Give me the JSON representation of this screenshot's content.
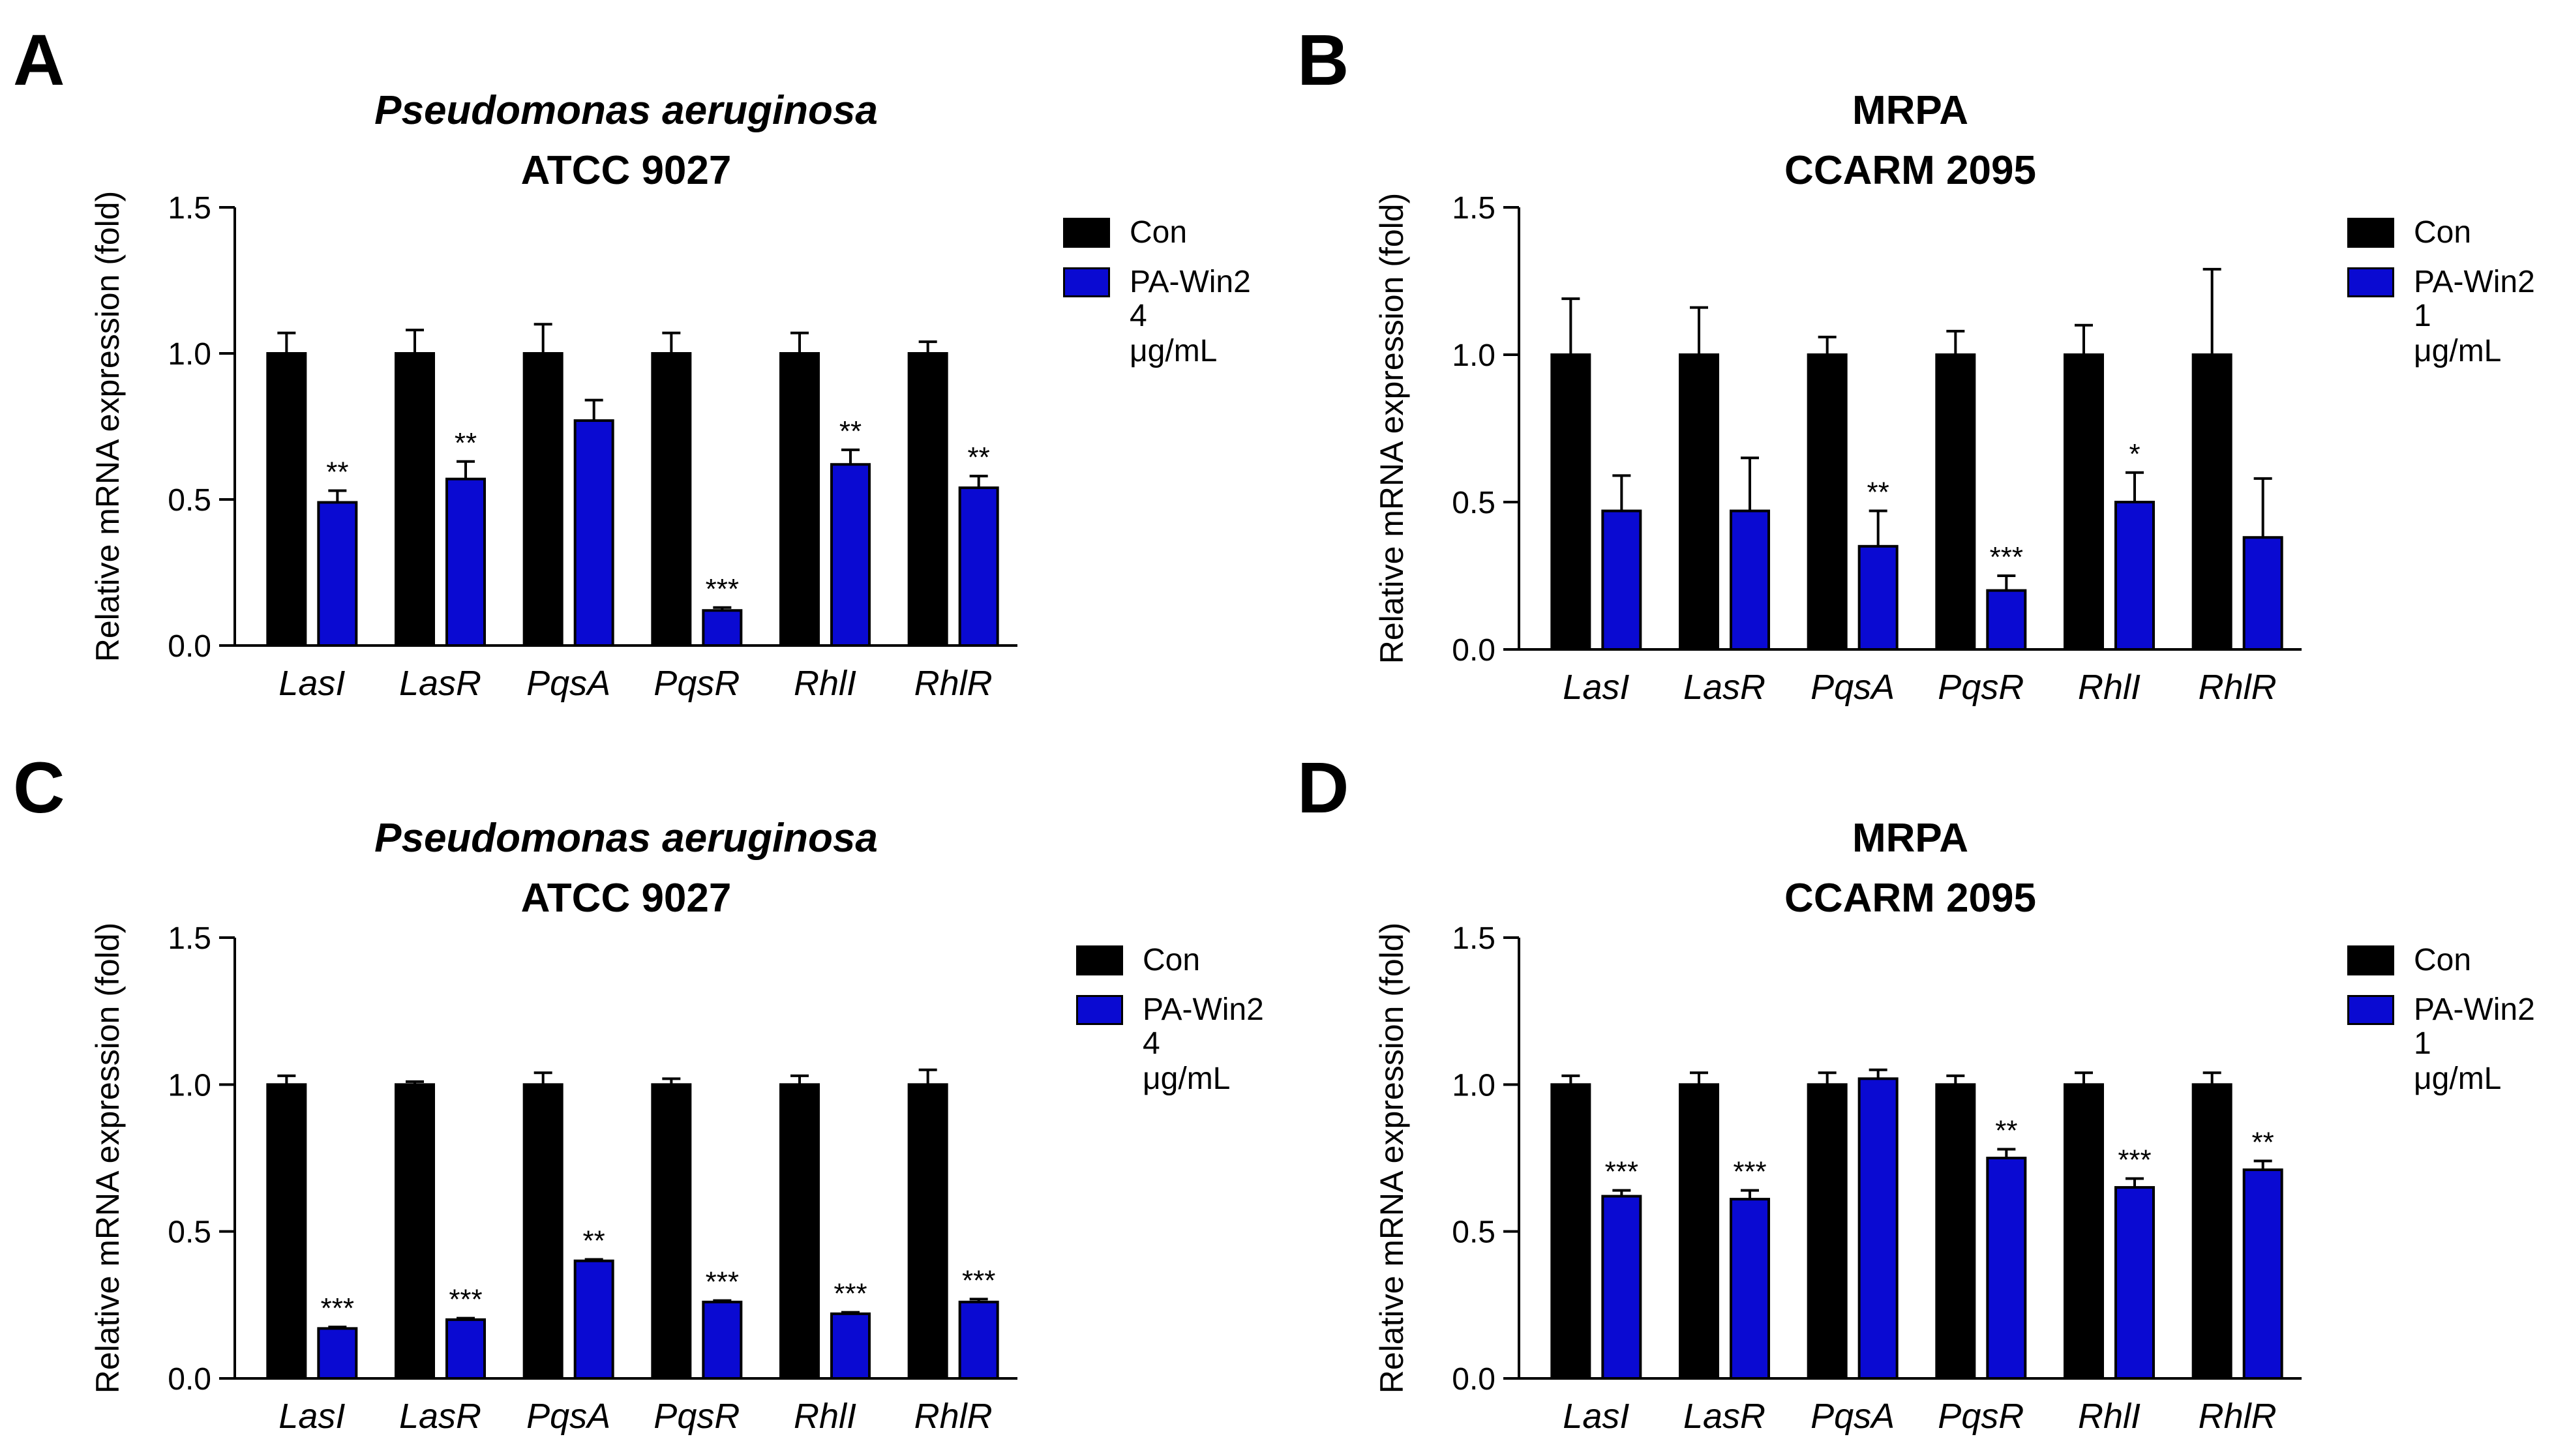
{
  "colors": {
    "control": "#000000",
    "treated": "#0a0ad2",
    "axis": "#000000"
  },
  "chart_data": [
    {
      "type": "bar",
      "panel_label": "A",
      "title_line1": "Pseudomonas aeruginosa",
      "title_line1_italic": true,
      "title_line2": "ATCC 9027",
      "ylabel": "Relative mRNA expression (fold)",
      "xlabel": "",
      "ylim": [
        0,
        1.5
      ],
      "yticks": [
        "0.0",
        "0.5",
        "1.0",
        "1.5"
      ],
      "categories": [
        "LasI",
        "LasR",
        "PqsA",
        "PqsR",
        "RhlI",
        "RhlR"
      ],
      "series": [
        {
          "name": "Con",
          "color": "#000000",
          "values": [
            1.0,
            1.0,
            1.0,
            1.0,
            1.0,
            1.0
          ],
          "errors": [
            0.07,
            0.08,
            0.1,
            0.07,
            0.07,
            0.04
          ],
          "significance": [
            "",
            "",
            "",
            "",
            "",
            ""
          ]
        },
        {
          "name": "PA-Win2",
          "color": "#0a0ad2",
          "values": [
            0.49,
            0.57,
            0.77,
            0.12,
            0.62,
            0.54
          ],
          "errors": [
            0.04,
            0.06,
            0.07,
            0.01,
            0.05,
            0.04
          ],
          "significance": [
            "**",
            "**",
            "",
            "***",
            "**",
            "**"
          ]
        }
      ],
      "legend": {
        "items": [
          "Con",
          "PA-Win2"
        ],
        "sublabel": "4 μg/mL",
        "placement": "right"
      }
    },
    {
      "type": "bar",
      "panel_label": "B",
      "title_line1": "MRPA",
      "title_line1_italic": false,
      "title_line2": "CCARM 2095",
      "ylabel": "Relative mRNA expression (fold)",
      "xlabel": "",
      "ylim": [
        0,
        1.5
      ],
      "yticks": [
        "0.0",
        "0.5",
        "1.0",
        "1.5"
      ],
      "categories": [
        "LasI",
        "LasR",
        "PqsA",
        "PqsR",
        "RhlI",
        "RhlR"
      ],
      "series": [
        {
          "name": "Con",
          "color": "#000000",
          "values": [
            1.0,
            1.0,
            1.0,
            1.0,
            1.0,
            1.0
          ],
          "errors": [
            0.19,
            0.16,
            0.06,
            0.08,
            0.1,
            0.29
          ],
          "significance": [
            "",
            "",
            "",
            "",
            "",
            ""
          ]
        },
        {
          "name": "PA-Win2",
          "color": "#0a0ad2",
          "values": [
            0.47,
            0.47,
            0.35,
            0.2,
            0.5,
            0.38
          ],
          "errors": [
            0.12,
            0.18,
            0.12,
            0.05,
            0.1,
            0.2
          ],
          "significance": [
            "",
            "",
            "**",
            "***",
            "*",
            ""
          ]
        }
      ],
      "legend": {
        "items": [
          "Con",
          "PA-Win2"
        ],
        "sublabel": "1 μg/mL",
        "placement": "right"
      }
    },
    {
      "type": "bar",
      "panel_label": "C",
      "title_line1": "Pseudomonas aeruginosa",
      "title_line1_italic": true,
      "title_line2": "ATCC 9027",
      "ylabel": "Relative mRNA expression (fold)",
      "xlabel": "",
      "ylim": [
        0,
        1.5
      ],
      "yticks": [
        "0.0",
        "0.5",
        "1.0",
        "1.5"
      ],
      "categories": [
        "LasI",
        "LasR",
        "PqsA",
        "PqsR",
        "RhlI",
        "RhlR"
      ],
      "series": [
        {
          "name": "Con",
          "color": "#000000",
          "values": [
            1.0,
            1.0,
            1.0,
            1.0,
            1.0,
            1.0
          ],
          "errors": [
            0.03,
            0.01,
            0.04,
            0.02,
            0.03,
            0.05
          ],
          "significance": [
            "",
            "",
            "",
            "",
            "",
            ""
          ]
        },
        {
          "name": "PA-Win2",
          "color": "#0a0ad2",
          "values": [
            0.17,
            0.2,
            0.4,
            0.26,
            0.22,
            0.26
          ],
          "errors": [
            0.005,
            0.005,
            0.005,
            0.005,
            0.005,
            0.01
          ],
          "significance": [
            "***",
            "***",
            "**",
            "***",
            "***",
            "***"
          ]
        }
      ],
      "legend": {
        "items": [
          "Con",
          "PA-Win2"
        ],
        "sublabel": "4 μg/mL",
        "placement": "right"
      }
    },
    {
      "type": "bar",
      "panel_label": "D",
      "title_line1": "MRPA",
      "title_line1_italic": false,
      "title_line2": "CCARM 2095",
      "ylabel": "Relative mRNA expression (fold)",
      "xlabel": "",
      "ylim": [
        0,
        1.5
      ],
      "yticks": [
        "0.0",
        "0.5",
        "1.0",
        "1.5"
      ],
      "categories": [
        "LasI",
        "LasR",
        "PqsA",
        "PqsR",
        "RhlI",
        "RhlR"
      ],
      "series": [
        {
          "name": "Con",
          "color": "#000000",
          "values": [
            1.0,
            1.0,
            1.0,
            1.0,
            1.0,
            1.0
          ],
          "errors": [
            0.03,
            0.04,
            0.04,
            0.03,
            0.04,
            0.04
          ],
          "significance": [
            "",
            "",
            "",
            "",
            "",
            ""
          ]
        },
        {
          "name": "PA-Win2",
          "color": "#0a0ad2",
          "values": [
            0.62,
            0.61,
            1.02,
            0.75,
            0.65,
            0.71
          ],
          "errors": [
            0.02,
            0.03,
            0.03,
            0.03,
            0.03,
            0.03
          ],
          "significance": [
            "***",
            "***",
            "",
            "**",
            "***",
            "**"
          ]
        }
      ],
      "legend": {
        "items": [
          "Con",
          "PA-Win2"
        ],
        "sublabel": "1 μg/mL",
        "placement": "right"
      }
    }
  ]
}
